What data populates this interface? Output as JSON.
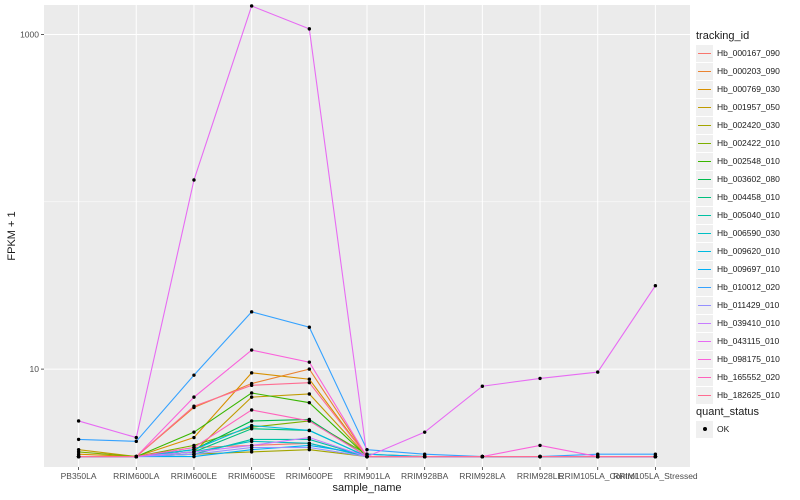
{
  "chart_data": {
    "type": "line",
    "title": "",
    "xlabel": "sample_name",
    "ylabel": "FPKM + 1",
    "y_scale": "log10",
    "ylim": [
      2.6,
      1500
    ],
    "y_ticks": [
      10,
      1000
    ],
    "y_tick_labels": [
      "10",
      "1000"
    ],
    "categories": [
      "PB350LA",
      "RRIM600LA",
      "RRIM600LE",
      "RRIM600SE",
      "RRIM600PE",
      "RRIM901LA",
      "RRIM928BA",
      "RRIM928LA",
      "RRIM928LE",
      "RRIM105LA_Control",
      "RRIM105LA_Stressed"
    ],
    "grid": true,
    "legend_position": "right",
    "legend_title": "tracking_id",
    "series": [
      {
        "name": "Hb_000167_090",
        "color": "#F8766D",
        "values": [
          3.0,
          3.0,
          3.4,
          3.5,
          3.6,
          3.0,
          3.0,
          3.0,
          3.0,
          3.0,
          3.0
        ]
      },
      {
        "name": "Hb_000203_090",
        "color": "#EA8331",
        "values": [
          3.0,
          3.0,
          5.9,
          8.2,
          10.0,
          3.0,
          3.0,
          3.0,
          3.0,
          3.0,
          3.0
        ]
      },
      {
        "name": "Hb_000769_030",
        "color": "#D89000",
        "values": [
          3.1,
          3.0,
          3.9,
          9.5,
          8.7,
          3.0,
          3.0,
          3.0,
          3.0,
          3.0,
          3.0
        ]
      },
      {
        "name": "Hb_001957_050",
        "color": "#C09B00",
        "values": [
          3.3,
          3.0,
          3.2,
          6.8,
          7.1,
          3.0,
          3.0,
          3.0,
          3.0,
          3.0,
          3.0
        ]
      },
      {
        "name": "Hb_002420_030",
        "color": "#A3A500",
        "values": [
          3.0,
          3.0,
          3.1,
          3.2,
          3.3,
          3.0,
          3.0,
          3.0,
          3.0,
          3.0,
          3.0
        ]
      },
      {
        "name": "Hb_002422_010",
        "color": "#7CAE00",
        "values": [
          3.2,
          3.0,
          3.5,
          4.5,
          4.9,
          3.1,
          3.0,
          3.0,
          3.0,
          3.0,
          3.0
        ]
      },
      {
        "name": "Hb_002548_010",
        "color": "#39B600",
        "values": [
          3.0,
          3.0,
          4.2,
          7.2,
          6.3,
          3.0,
          3.0,
          3.0,
          3.0,
          3.0,
          3.0
        ]
      },
      {
        "name": "Hb_003602_080",
        "color": "#00BB4E",
        "values": [
          3.0,
          3.0,
          3.3,
          4.9,
          5.0,
          3.0,
          3.0,
          3.0,
          3.0,
          3.0,
          3.0
        ]
      },
      {
        "name": "Hb_004458_010",
        "color": "#00BF7D",
        "values": [
          3.0,
          3.0,
          3.2,
          4.4,
          4.3,
          3.0,
          3.0,
          3.0,
          3.0,
          3.0,
          3.0
        ]
      },
      {
        "name": "Hb_005040_010",
        "color": "#00C1A3",
        "values": [
          3.0,
          3.0,
          3.1,
          3.8,
          3.8,
          3.0,
          3.0,
          3.0,
          3.0,
          3.0,
          3.0
        ]
      },
      {
        "name": "Hb_006590_030",
        "color": "#00BFC4",
        "values": [
          3.0,
          3.0,
          3.2,
          3.7,
          3.6,
          3.0,
          3.0,
          3.0,
          3.0,
          3.0,
          3.0
        ]
      },
      {
        "name": "Hb_009620_010",
        "color": "#00BAE0",
        "values": [
          3.0,
          3.0,
          3.3,
          4.6,
          4.3,
          3.0,
          3.0,
          3.0,
          3.0,
          3.0,
          3.0
        ]
      },
      {
        "name": "Hb_009697_010",
        "color": "#00B0F6",
        "values": [
          3.0,
          3.0,
          3.0,
          3.3,
          3.5,
          3.1,
          3.0,
          3.0,
          3.0,
          3.0,
          3.0
        ]
      },
      {
        "name": "Hb_010012_020",
        "color": "#35A2FF",
        "values": [
          3.8,
          3.7,
          9.2,
          22.0,
          17.8,
          3.3,
          3.1,
          3.0,
          3.0,
          3.1,
          3.1
        ]
      },
      {
        "name": "Hb_011429_010",
        "color": "#9590FF",
        "values": [
          3.0,
          3.0,
          3.1,
          3.4,
          3.4,
          3.0,
          3.0,
          3.0,
          3.0,
          3.0,
          3.0
        ]
      },
      {
        "name": "Hb_039410_010",
        "color": "#C77CFF",
        "values": [
          3.0,
          3.0,
          3.2,
          3.5,
          3.9,
          3.0,
          3.0,
          3.0,
          3.0,
          3.0,
          3.0
        ]
      },
      {
        "name": "Hb_043115_010",
        "color": "#E76BF3",
        "values": [
          4.9,
          3.9,
          135.0,
          1480.0,
          1080.0,
          3.0,
          4.2,
          7.9,
          8.8,
          9.6,
          31.5
        ]
      },
      {
        "name": "Hb_098175_010",
        "color": "#FA62DB",
        "values": [
          3.0,
          3.0,
          6.8,
          13.0,
          11.0,
          3.0,
          3.0,
          3.0,
          3.5,
          3.0,
          3.0
        ]
      },
      {
        "name": "Hb_165552_020",
        "color": "#FF62BC",
        "values": [
          3.0,
          3.0,
          3.4,
          5.7,
          4.9,
          3.0,
          3.0,
          3.0,
          3.0,
          3.0,
          3.0
        ]
      },
      {
        "name": "Hb_182625_010",
        "color": "#FF6C91",
        "values": [
          3.0,
          3.0,
          6.0,
          8.0,
          8.3,
          3.0,
          3.0,
          3.0,
          3.0,
          3.0,
          3.0
        ]
      }
    ],
    "legend2_title": "quant_status",
    "legend2_items": [
      "OK"
    ]
  }
}
